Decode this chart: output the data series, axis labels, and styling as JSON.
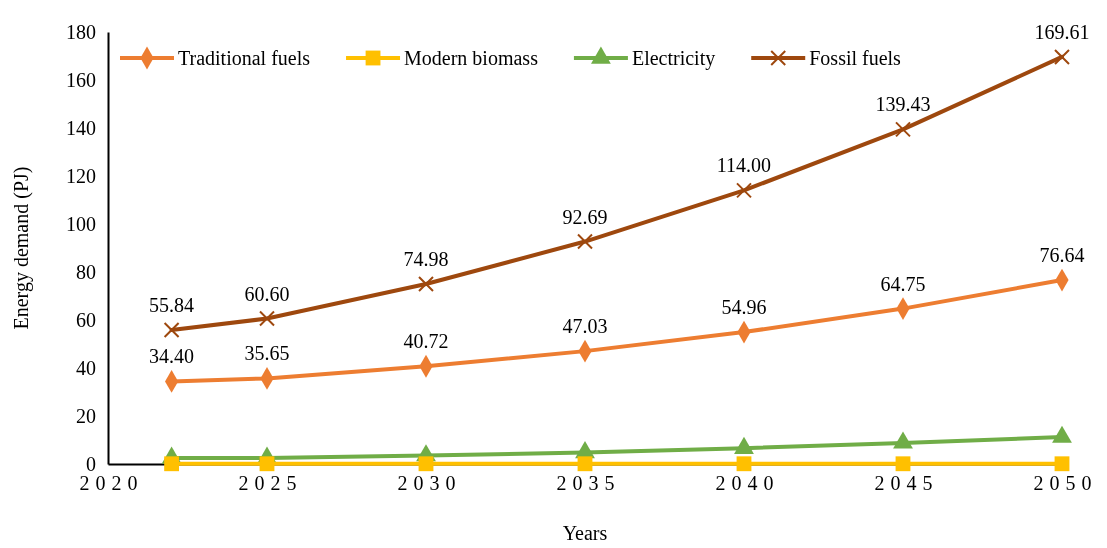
{
  "chart_data": {
    "type": "line",
    "xlabel": "Years",
    "ylabel": "Energy demand (PJ)",
    "x": [
      2022,
      2025,
      2030,
      2035,
      2040,
      2045,
      2050
    ],
    "xlim": [
      2020,
      2050
    ],
    "xticks": [
      2020,
      2025,
      2030,
      2035,
      2040,
      2045,
      2050
    ],
    "ylim": [
      0,
      180
    ],
    "yticks": [
      0,
      20,
      40,
      60,
      80,
      100,
      120,
      140,
      160,
      180
    ],
    "grid": false,
    "legend": "top",
    "series": [
      {
        "name": "Traditional fuels",
        "color": "#ed7d31",
        "marker": "diamond",
        "values": [
          34.4,
          35.65,
          40.72,
          47.03,
          54.96,
          64.75,
          76.64
        ],
        "value_labels": [
          "34.40",
          "35.65",
          "40.72",
          "47.03",
          "54.96",
          "64.75",
          "76.64"
        ]
      },
      {
        "name": "Modern biomass",
        "color": "#ffc000",
        "marker": "square",
        "values": [
          0.1,
          0.1,
          0.1,
          0.1,
          0.1,
          0.1,
          0.1
        ]
      },
      {
        "name": "Electricity",
        "color": "#70ad47",
        "marker": "triangle",
        "values": [
          2.5,
          2.5,
          3.5,
          4.8,
          6.6,
          8.8,
          11.2
        ]
      },
      {
        "name": "Fossil fuels",
        "color": "#9e480e",
        "marker": "cross",
        "values": [
          55.84,
          60.6,
          74.98,
          92.69,
          114.0,
          139.43,
          169.61
        ],
        "value_labels": [
          "55.84",
          "60.60",
          "74.98",
          "92.69",
          "114.00",
          "139.43",
          "169.61"
        ]
      }
    ]
  }
}
